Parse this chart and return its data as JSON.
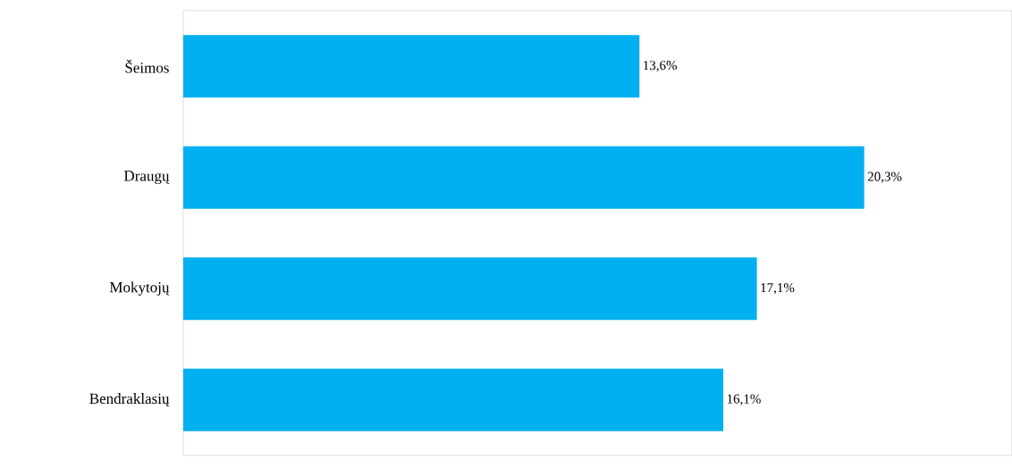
{
  "chart_data": {
    "type": "bar",
    "orientation": "horizontal",
    "categories": [
      "Šeimos",
      "Draugų",
      "Mokytojų",
      "Bendraklasių"
    ],
    "values": [
      13.6,
      20.3,
      17.1,
      16.1
    ],
    "value_labels": [
      "13,6%",
      "20,3%",
      "17,1%",
      "16,1%"
    ],
    "color": "#00b0f0",
    "xlim": [
      0,
      24.7
    ]
  }
}
